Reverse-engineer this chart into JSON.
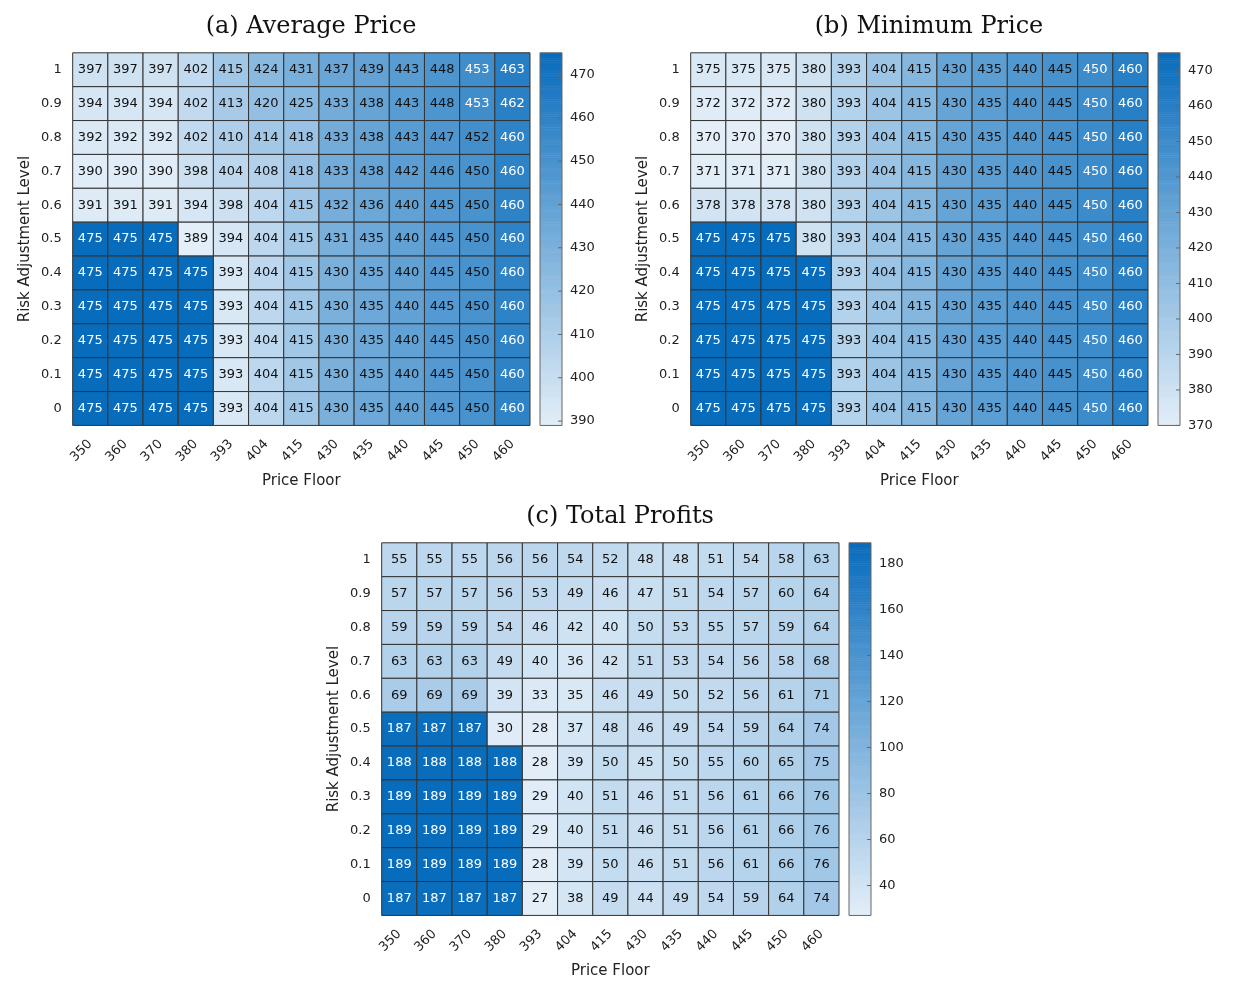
{
  "chart_data": [
    {
      "type": "heatmap",
      "title": "(a) Average Price",
      "xlabel": "Price Floor",
      "ylabel": "Risk Adjustment Level",
      "data_labels": true,
      "categories": [
        "350",
        "360",
        "370",
        "380",
        "393",
        "404",
        "415",
        "430",
        "435",
        "440",
        "445",
        "450",
        "460"
      ],
      "y_categories": [
        "1",
        "0.9",
        "0.8",
        "0.7",
        "0.6",
        "0.5",
        "0.4",
        "0.3",
        "0.2",
        "0.1",
        "0"
      ],
      "cells": [
        [
          397,
          397,
          397,
          402,
          415,
          424,
          431,
          437,
          439,
          443,
          448,
          453,
          463
        ],
        [
          394,
          394,
          394,
          402,
          413,
          420,
          425,
          433,
          438,
          443,
          448,
          453,
          462
        ],
        [
          392,
          392,
          392,
          402,
          410,
          414,
          418,
          433,
          438,
          443,
          447,
          452,
          460
        ],
        [
          390,
          390,
          390,
          398,
          404,
          408,
          418,
          433,
          438,
          442,
          446,
          450,
          460
        ],
        [
          391,
          391,
          391,
          394,
          398,
          404,
          415,
          432,
          436,
          440,
          445,
          450,
          460
        ],
        [
          475,
          475,
          475,
          389,
          394,
          404,
          415,
          431,
          435,
          440,
          445,
          450,
          460
        ],
        [
          475,
          475,
          475,
          475,
          393,
          404,
          415,
          430,
          435,
          440,
          445,
          450,
          460
        ],
        [
          475,
          475,
          475,
          475,
          393,
          404,
          415,
          430,
          435,
          440,
          445,
          450,
          460
        ],
        [
          475,
          475,
          475,
          475,
          393,
          404,
          415,
          430,
          435,
          440,
          445,
          450,
          460
        ],
        [
          475,
          475,
          475,
          475,
          393,
          404,
          415,
          430,
          435,
          440,
          445,
          450,
          460
        ],
        [
          475,
          475,
          475,
          475,
          393,
          404,
          415,
          430,
          435,
          440,
          445,
          450,
          460
        ]
      ],
      "clim": [
        389,
        475
      ],
      "cticks": [
        390,
        400,
        410,
        420,
        430,
        440,
        450,
        460,
        470
      ]
    },
    {
      "type": "heatmap",
      "title": "(b) Minimum Price",
      "xlabel": "Price Floor",
      "ylabel": "Risk Adjustment Level",
      "data_labels": true,
      "categories": [
        "350",
        "360",
        "370",
        "380",
        "393",
        "404",
        "415",
        "430",
        "435",
        "440",
        "445",
        "450",
        "460"
      ],
      "y_categories": [
        "1",
        "0.9",
        "0.8",
        "0.7",
        "0.6",
        "0.5",
        "0.4",
        "0.3",
        "0.2",
        "0.1",
        "0"
      ],
      "cells": [
        [
          375,
          375,
          375,
          380,
          393,
          404,
          415,
          430,
          435,
          440,
          445,
          450,
          460
        ],
        [
          372,
          372,
          372,
          380,
          393,
          404,
          415,
          430,
          435,
          440,
          445,
          450,
          460
        ],
        [
          370,
          370,
          370,
          380,
          393,
          404,
          415,
          430,
          435,
          440,
          445,
          450,
          460
        ],
        [
          371,
          371,
          371,
          380,
          393,
          404,
          415,
          430,
          435,
          440,
          445,
          450,
          460
        ],
        [
          378,
          378,
          378,
          380,
          393,
          404,
          415,
          430,
          435,
          440,
          445,
          450,
          460
        ],
        [
          475,
          475,
          475,
          380,
          393,
          404,
          415,
          430,
          435,
          440,
          445,
          450,
          460
        ],
        [
          475,
          475,
          475,
          475,
          393,
          404,
          415,
          430,
          435,
          440,
          445,
          450,
          460
        ],
        [
          475,
          475,
          475,
          475,
          393,
          404,
          415,
          430,
          435,
          440,
          445,
          450,
          460
        ],
        [
          475,
          475,
          475,
          475,
          393,
          404,
          415,
          430,
          435,
          440,
          445,
          450,
          460
        ],
        [
          475,
          475,
          475,
          475,
          393,
          404,
          415,
          430,
          435,
          440,
          445,
          450,
          460
        ],
        [
          475,
          475,
          475,
          475,
          393,
          404,
          415,
          430,
          435,
          440,
          445,
          450,
          460
        ]
      ],
      "clim": [
        370,
        475
      ],
      "cticks": [
        370,
        380,
        390,
        400,
        410,
        420,
        430,
        440,
        450,
        460,
        470
      ]
    },
    {
      "type": "heatmap",
      "title": "(c) Total Profits",
      "xlabel": "Price Floor",
      "ylabel": "Risk Adjustment Level",
      "data_labels": true,
      "categories": [
        "350",
        "360",
        "370",
        "380",
        "393",
        "404",
        "415",
        "430",
        "435",
        "440",
        "445",
        "450",
        "460"
      ],
      "y_categories": [
        "1",
        "0.9",
        "0.8",
        "0.7",
        "0.6",
        "0.5",
        "0.4",
        "0.3",
        "0.2",
        "0.1",
        "0"
      ],
      "cells": [
        [
          55,
          55,
          55,
          56,
          56,
          54,
          52,
          48,
          48,
          51,
          54,
          58,
          63
        ],
        [
          57,
          57,
          57,
          56,
          53,
          49,
          46,
          47,
          51,
          54,
          57,
          60,
          64
        ],
        [
          59,
          59,
          59,
          54,
          46,
          42,
          40,
          50,
          53,
          55,
          57,
          59,
          64
        ],
        [
          63,
          63,
          63,
          49,
          40,
          36,
          42,
          51,
          53,
          54,
          56,
          58,
          68
        ],
        [
          69,
          69,
          69,
          39,
          33,
          35,
          46,
          49,
          50,
          52,
          56,
          61,
          71
        ],
        [
          187,
          187,
          187,
          30,
          28,
          37,
          48,
          46,
          49,
          54,
          59,
          64,
          74
        ],
        [
          188,
          188,
          188,
          188,
          28,
          39,
          50,
          45,
          50,
          55,
          60,
          65,
          75
        ],
        [
          189,
          189,
          189,
          189,
          29,
          40,
          51,
          46,
          51,
          56,
          61,
          66,
          76
        ],
        [
          189,
          189,
          189,
          189,
          29,
          40,
          51,
          46,
          51,
          56,
          61,
          66,
          76
        ],
        [
          189,
          189,
          189,
          189,
          28,
          39,
          50,
          46,
          51,
          56,
          61,
          66,
          76
        ],
        [
          187,
          187,
          187,
          187,
          27,
          38,
          49,
          44,
          49,
          54,
          59,
          64,
          74
        ]
      ],
      "clim": [
        27,
        189
      ],
      "cticks": [
        40,
        60,
        80,
        100,
        120,
        140,
        160,
        180
      ]
    }
  ]
}
